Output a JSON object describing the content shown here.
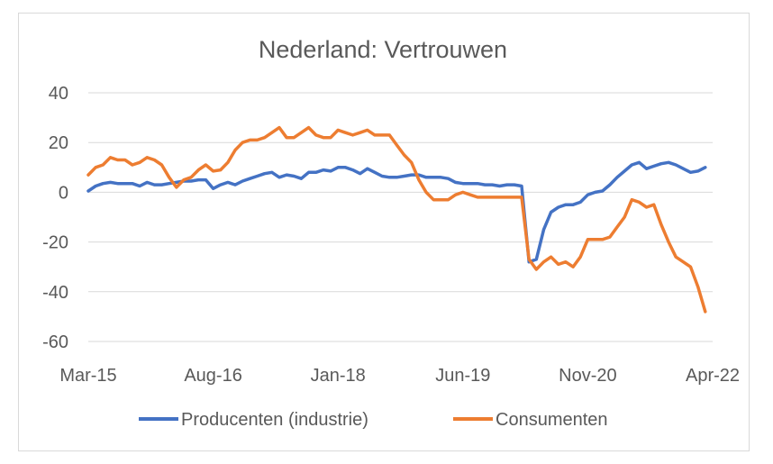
{
  "chart_data": {
    "type": "line",
    "title": "Nederland: Vertrouwen",
    "xlabel": "",
    "ylabel": "",
    "ylim": [
      -60,
      40
    ],
    "y_ticks": [
      "40",
      "20",
      "0",
      "-20",
      "-40",
      "-60"
    ],
    "y_tick_values": [
      40,
      20,
      0,
      -20,
      -40,
      -60
    ],
    "x_tick_labels": [
      "Mar-15",
      "Aug-16",
      "Jan-18",
      "Jun-19",
      "Nov-20",
      "Apr-22"
    ],
    "x_range_months": [
      0,
      85
    ],
    "x_tick_positions_months": [
      0,
      17,
      34,
      51,
      68,
      85
    ],
    "grid": true,
    "legend_position": "bottom",
    "series": [
      {
        "name": "Producenten (industrie)",
        "color": "#4472C4",
        "values": [
          0.5,
          2.5,
          3.5,
          4,
          3.5,
          3.5,
          3.5,
          2.5,
          4,
          3,
          3,
          3.5,
          4,
          4.5,
          4.5,
          5,
          5,
          1.5,
          3,
          4,
          3,
          4.5,
          5.5,
          6.5,
          7.5,
          8,
          6,
          7,
          6.5,
          5.5,
          8,
          8,
          9,
          8.5,
          10,
          10,
          9,
          7.5,
          9.5,
          8,
          6.5,
          6,
          6,
          6.5,
          7,
          7,
          6,
          6,
          6,
          5.5,
          4,
          3.5,
          3.5,
          3.5,
          3,
          3,
          2.5,
          3,
          3,
          2.5,
          -28,
          -27,
          -15,
          -8,
          -6,
          -5,
          -5,
          -4,
          -1,
          0,
          0.5,
          3,
          6,
          8.5,
          11,
          12,
          9.5,
          10.5,
          11.5,
          12,
          11,
          9.5,
          8,
          8.5,
          10
        ]
      },
      {
        "name": "Consumenten",
        "color": "#ED7D31",
        "values": [
          7,
          10,
          11,
          14,
          13,
          13,
          11,
          12,
          14,
          13,
          11,
          6,
          2,
          5,
          6,
          9,
          11,
          8.5,
          9,
          12,
          17,
          20,
          21,
          21,
          22,
          24,
          26,
          22,
          22,
          24,
          26,
          23,
          22,
          22,
          25,
          24,
          23,
          24,
          25,
          23,
          23,
          23,
          19,
          15,
          12,
          5,
          0,
          -3,
          -3,
          -3,
          -1,
          0,
          -1,
          -2,
          -2,
          -2,
          -2,
          -2,
          -2,
          -2,
          -27,
          -31,
          -28,
          -26,
          -29,
          -28,
          -30,
          -26,
          -19,
          -19,
          -19,
          -18,
          -14,
          -10,
          -3,
          -4,
          -6,
          -5,
          -13,
          -20,
          -26,
          -28,
          -30,
          -38,
          -48
        ]
      }
    ]
  }
}
